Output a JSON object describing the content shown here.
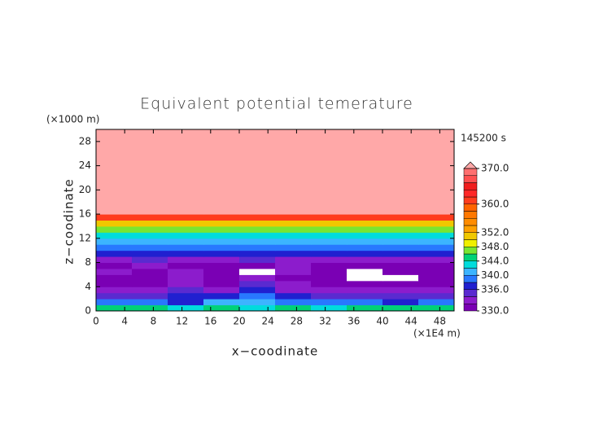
{
  "chart_data": {
    "type": "contour",
    "title": "Equivalent potential temerature",
    "y_unit": "(×1000 m)",
    "x_unit": "(×1E4 m)",
    "time_label": "145200 s",
    "xlabel": "x−coodinate",
    "ylabel": "z−coodinate",
    "xlim": [
      0,
      50
    ],
    "ylim": [
      0,
      30
    ],
    "xticks": [
      0,
      4,
      8,
      12,
      16,
      20,
      24,
      28,
      32,
      36,
      40,
      44,
      48
    ],
    "yticks": [
      0,
      4,
      8,
      12,
      16,
      20,
      24,
      28
    ],
    "x_edges": [
      0,
      5,
      10,
      15,
      20,
      25,
      30,
      35,
      40,
      45,
      50
    ],
    "z_edges": [
      0,
      1,
      2,
      3,
      4,
      5,
      6,
      7,
      8,
      9,
      10,
      11,
      12,
      13,
      14,
      15,
      16,
      30
    ],
    "z": [
      [
        345,
        344,
        343,
        344,
        342,
        344,
        343,
        344,
        345,
        344
      ],
      [
        338,
        339,
        337,
        340,
        341,
        339,
        338,
        338,
        337,
        338
      ],
      [
        335,
        334,
        336,
        337,
        339,
        336,
        335,
        334,
        335,
        334
      ],
      [
        333,
        332,
        334,
        333,
        336,
        333,
        332,
        333,
        332,
        333
      ],
      [
        331,
        331,
        333,
        331,
        334,
        332,
        331,
        330,
        331,
        331
      ],
      [
        331,
        330,
        332,
        331,
        333,
        331,
        330,
        329,
        329,
        331
      ],
      [
        332,
        331,
        333,
        331,
        329,
        332,
        331,
        329,
        331,
        330
      ],
      [
        331,
        332,
        331,
        330,
        331,
        332,
        331,
        330,
        331,
        331
      ],
      [
        333,
        334,
        333,
        333,
        334,
        333,
        332,
        333,
        333,
        332
      ],
      [
        337,
        337,
        336,
        337,
        337,
        336,
        337,
        337,
        336,
        337
      ],
      [
        339,
        339,
        339,
        339,
        339,
        339,
        339,
        339,
        339,
        339
      ],
      [
        341,
        341,
        341,
        341,
        341,
        341,
        341,
        341,
        341,
        341
      ],
      [
        343,
        343,
        343,
        343,
        343,
        343,
        343,
        343,
        343,
        343
      ],
      [
        346,
        346,
        346,
        346,
        346,
        346,
        346,
        346,
        346,
        346
      ],
      [
        350,
        350,
        350,
        350,
        350,
        350,
        350,
        350,
        350,
        350
      ],
      [
        360,
        360,
        360,
        360,
        360,
        360,
        360,
        360,
        360,
        360
      ],
      [
        372,
        372,
        372,
        372,
        372,
        372,
        372,
        372,
        372,
        372
      ]
    ],
    "levels": [
      330,
      332,
      334,
      336,
      338,
      340,
      342,
      344,
      346,
      348,
      350,
      352,
      354,
      356,
      358,
      360,
      362,
      364,
      366,
      368,
      370
    ],
    "colors": [
      "#7a00b4",
      "#8c1ccc",
      "#5a2ad0",
      "#2020d0",
      "#2878ff",
      "#3cb4ff",
      "#00dcdc",
      "#00d278",
      "#78e632",
      "#f0f000",
      "#f0c800",
      "#ffa000",
      "#ff8c00",
      "#ff7800",
      "#ff6400",
      "#ff3c1e",
      "#ff2828",
      "#f01e1e",
      "#ff5050",
      "#ff7070"
    ],
    "under_color": "#ffffff",
    "over_color": "#ffa8a8",
    "colorbar_ticks": [
      {
        "value": 330,
        "label": "330.0"
      },
      {
        "value": 336,
        "label": "336.0"
      },
      {
        "value": 340,
        "label": "340.0"
      },
      {
        "value": 344,
        "label": "344.0"
      },
      {
        "value": 348,
        "label": "348.0"
      },
      {
        "value": 352,
        "label": "352.0"
      },
      {
        "value": 360,
        "label": "360.0"
      },
      {
        "value": 370,
        "label": "370.0"
      }
    ]
  }
}
